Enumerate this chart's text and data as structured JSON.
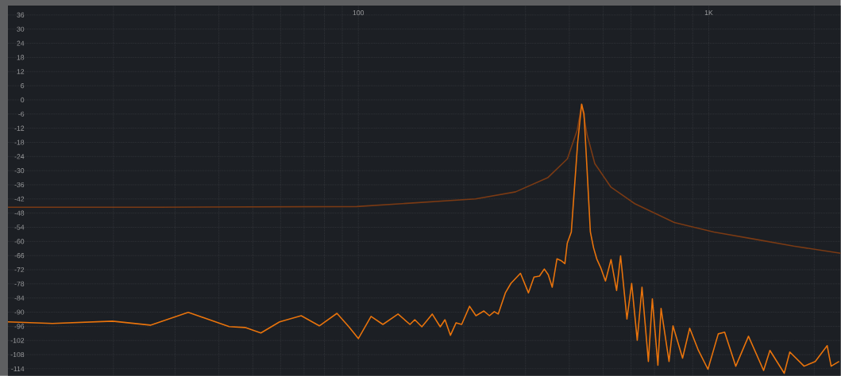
{
  "chart_data": {
    "type": "line",
    "log": "x",
    "grid": true,
    "xlim": [
      10,
      2380
    ],
    "ylim": [
      -117,
      40
    ],
    "xticks": [
      {
        "value": 20,
        "label": null
      },
      {
        "value": 30,
        "label": null
      },
      {
        "value": 40,
        "label": null
      },
      {
        "value": 50,
        "label": null
      },
      {
        "value": 60,
        "label": null
      },
      {
        "value": 70,
        "label": null
      },
      {
        "value": 80,
        "label": null
      },
      {
        "value": 90,
        "label": null
      },
      100,
      {
        "value": 200,
        "label": null
      },
      {
        "value": 300,
        "label": null
      },
      {
        "value": 400,
        "label": null
      },
      {
        "value": 500,
        "label": null
      },
      {
        "value": 600,
        "label": null
      },
      {
        "value": 700,
        "label": null
      },
      {
        "value": 800,
        "label": null
      },
      {
        "value": 900,
        "label": null
      },
      {
        "value": 1000,
        "label": "1K"
      },
      {
        "value": 2000,
        "label": null
      }
    ],
    "yticks": [
      -114,
      -108,
      -102,
      -96,
      -90,
      -84,
      -78,
      -72,
      -66,
      -60,
      -54,
      -48,
      -42,
      -36,
      -30,
      -24,
      -18,
      -12,
      -6,
      0,
      6,
      12,
      18,
      24,
      30,
      36
    ],
    "series": [
      {
        "color": "#7a3a14",
        "x": [
          10,
          26.8,
          99,
          216,
          281,
          347,
          395,
          421,
          434,
          450,
          473,
          526,
          615,
          798,
          1034,
          1347,
          1748,
          2378
        ],
        "values": [
          -45.5,
          -45.5,
          -45.2,
          -42,
          -39,
          -33,
          -25,
          -13,
          -2,
          -15,
          -27,
          -37,
          -44,
          -52,
          -56,
          -59,
          -62,
          -65
        ]
      },
      {
        "color": "#e8730c",
        "x": [
          10,
          13.4,
          19.9,
          25.5,
          32.7,
          42.8,
          47.5,
          52.7,
          59.6,
          68.7,
          77.4,
          86.9,
          94,
          100,
          108.7,
          117.5,
          129.8,
          140.4,
          144.9,
          151.8,
          162.5,
          171.3,
          176.7,
          183.2,
          190.1,
          197.2,
          207.7,
          216.6,
          228.2,
          236.7,
          244.3,
          250.7,
          262.8,
          272.5,
          290.2,
          305.8,
          317.2,
          328.9,
          339.4,
          348.3,
          357.5,
          368.9,
          378.6,
          388.6,
          394.8,
          405.3,
          422.6,
          433.7,
          440.6,
          449.9,
          459.4,
          469.1,
          479,
          491.6,
          507.3,
          526.2,
          545.8,
          560.3,
          584.2,
          602.6,
          625.1,
          645,
          672.6,
          690.3,
          716,
          731.1,
          770.4,
          790.7,
          841.9,
          882.4,
          934.3,
          994.8,
          1064.6,
          1110.2,
          1194.4,
          1298.5,
          1434,
          1495,
          1642.3,
          1703.5,
          1871.4,
          2013.6,
          2177.6,
          2235,
          2355.2
        ],
        "values": [
          -94.1,
          -94.8,
          -93.8,
          -95.5,
          -90.1,
          -96.1,
          -96.5,
          -98.8,
          -94.1,
          -91.5,
          -95.8,
          -90.5,
          -96.2,
          -101.2,
          -91.8,
          -95.2,
          -90.8,
          -95.2,
          -93.2,
          -96.2,
          -90.8,
          -96.2,
          -93.2,
          -99.8,
          -94.5,
          -95.2,
          -87.5,
          -91.5,
          -89.5,
          -91.5,
          -89.8,
          -90.8,
          -81.8,
          -77.8,
          -73.5,
          -81.8,
          -75.1,
          -74.7,
          -71.7,
          -74.1,
          -79.4,
          -67.4,
          -68.1,
          -69.4,
          -60.7,
          -56,
          -18.2,
          -1.8,
          -5.9,
          -30.6,
          -56,
          -62.7,
          -67.4,
          -71.1,
          -76.8,
          -67.7,
          -80.8,
          -66.1,
          -92.9,
          -77.8,
          -101.9,
          -79.4,
          -110.9,
          -84.4,
          -112.5,
          -88.4,
          -110.9,
          -95.8,
          -109.5,
          -96.8,
          -106.2,
          -114.2,
          -99.2,
          -98.5,
          -112.9,
          -100.2,
          -114.7,
          -106.2,
          -115.9,
          -106.9,
          -112.9,
          -110.9,
          -104.2,
          -112.9,
          -110.9
        ]
      }
    ]
  }
}
